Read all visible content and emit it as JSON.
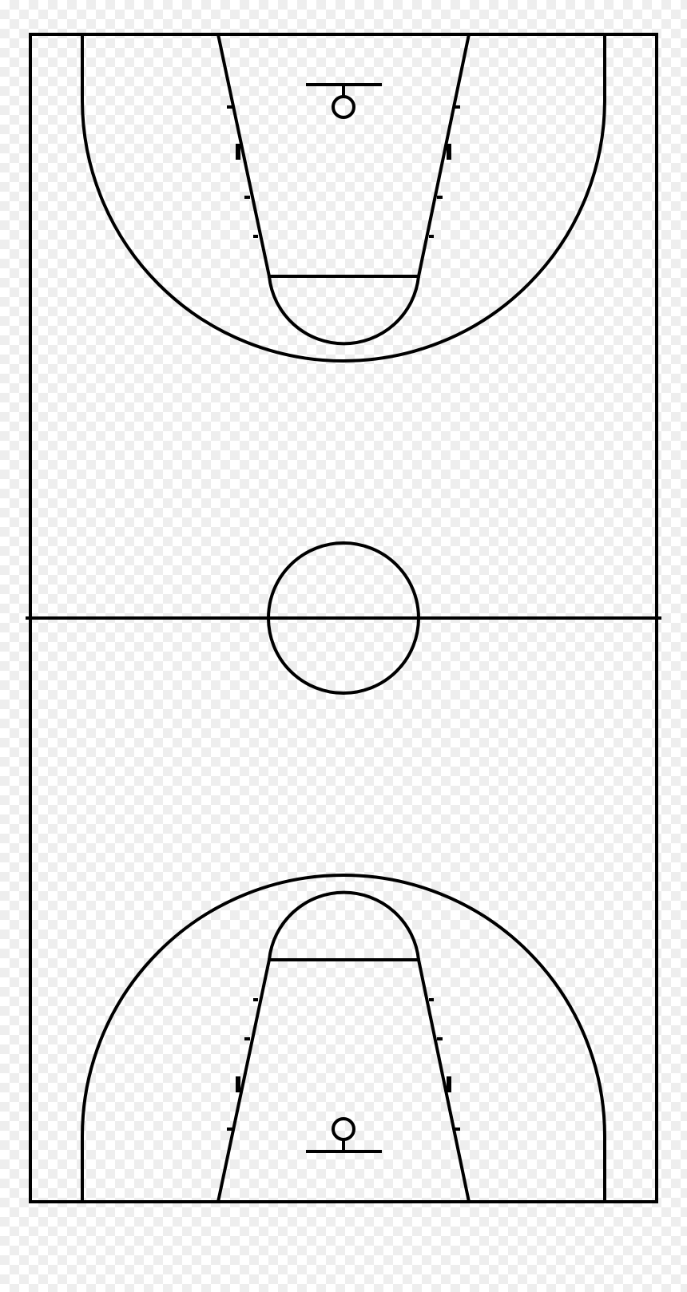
{
  "diagram": {
    "type": "basketball-court",
    "orientation": "vertical",
    "line_color": "#000000",
    "background": "transparency-checkerboard",
    "elements": [
      "court-boundary",
      "half-court-line",
      "center-circle",
      "top-three-point-arc",
      "top-free-throw-lane",
      "top-free-throw-circle",
      "top-backboard",
      "top-hoop",
      "bottom-three-point-arc",
      "bottom-free-throw-lane",
      "bottom-free-throw-circle",
      "bottom-backboard",
      "bottom-hoop"
    ]
  }
}
